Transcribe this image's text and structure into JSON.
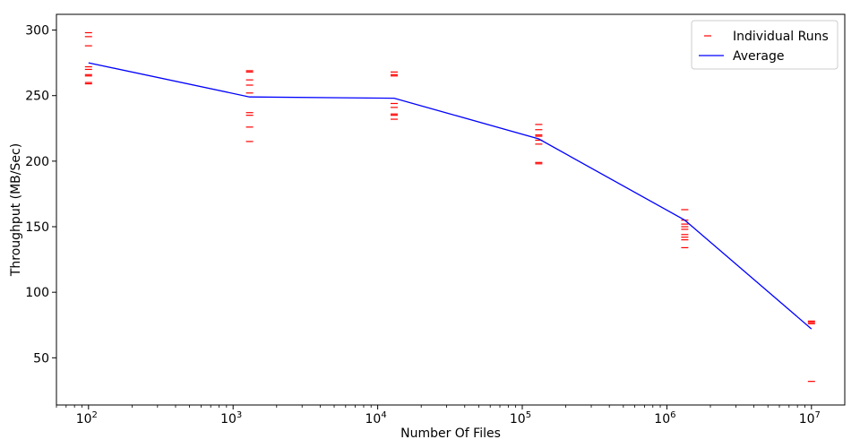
{
  "chart_data": {
    "type": "scatter",
    "title": "",
    "xlabel": "Number Of Files",
    "ylabel": "Throughput (MB/Sec)",
    "x_scale": "log",
    "xlim": [
      60,
      17000000
    ],
    "ylim": [
      14,
      312
    ],
    "x_ticks": [
      {
        "value": 100,
        "base": "10",
        "exp": "2"
      },
      {
        "value": 1000,
        "base": "10",
        "exp": "3"
      },
      {
        "value": 10000,
        "base": "10",
        "exp": "4"
      },
      {
        "value": 100000,
        "base": "10",
        "exp": "5"
      },
      {
        "value": 1000000,
        "base": "10",
        "exp": "6"
      },
      {
        "value": 10000000,
        "base": "10",
        "exp": "7"
      }
    ],
    "y_ticks": [
      50,
      100,
      150,
      200,
      250,
      300
    ],
    "grid": false,
    "legend_position": "top-right",
    "series": [
      {
        "name": "Individual Runs",
        "color": "#ff0000",
        "marker": "hline",
        "groups": [
          {
            "x": 100,
            "y": [
              298,
              295,
              288,
              272,
              270,
              266,
              265,
              260,
              259
            ]
          },
          {
            "x": 1300,
            "y": [
              269,
              268,
              262,
              258,
              252,
              237,
              235,
              226,
              215
            ]
          },
          {
            "x": 13000,
            "y": [
              268,
              266,
              265,
              244,
              241,
              236,
              235,
              232
            ]
          },
          {
            "x": 130000,
            "y": [
              228,
              224,
              220,
              219,
              216,
              213,
              199,
              198
            ]
          },
          {
            "x": 1330000,
            "y": [
              163,
              155,
              152,
              150,
              148,
              144,
              142,
              140,
              134
            ]
          },
          {
            "x": 10000000,
            "y": [
              78,
              77,
              76,
              32
            ]
          }
        ]
      },
      {
        "name": "Average",
        "color": "#0000ff",
        "marker": "line",
        "points": [
          {
            "x": 100,
            "y": 275
          },
          {
            "x": 1300,
            "y": 249
          },
          {
            "x": 13000,
            "y": 248
          },
          {
            "x": 130000,
            "y": 217
          },
          {
            "x": 1330000,
            "y": 155
          },
          {
            "x": 10000000,
            "y": 72
          }
        ]
      }
    ]
  }
}
